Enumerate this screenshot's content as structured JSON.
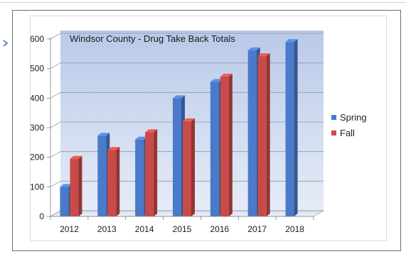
{
  "chart_data": {
    "type": "bar",
    "title": "Windsor County - Drug Take Back Totals",
    "xlabel": "",
    "ylabel": "",
    "categories": [
      "2012",
      "2013",
      "2014",
      "2015",
      "2016",
      "2017",
      "2018"
    ],
    "series": [
      {
        "name": "Spring",
        "color": "#4a7ac9",
        "values": [
          100,
          273,
          260,
          400,
          455,
          562,
          590
        ]
      },
      {
        "name": "Fall",
        "color": "#c94a48",
        "values": [
          195,
          225,
          285,
          322,
          473,
          542,
          null
        ]
      }
    ],
    "ylim": [
      0,
      600
    ],
    "yticks": [
      "0",
      "100",
      "200",
      "300",
      "400",
      "500",
      "600"
    ],
    "grid": true,
    "legend_position": "right"
  }
}
